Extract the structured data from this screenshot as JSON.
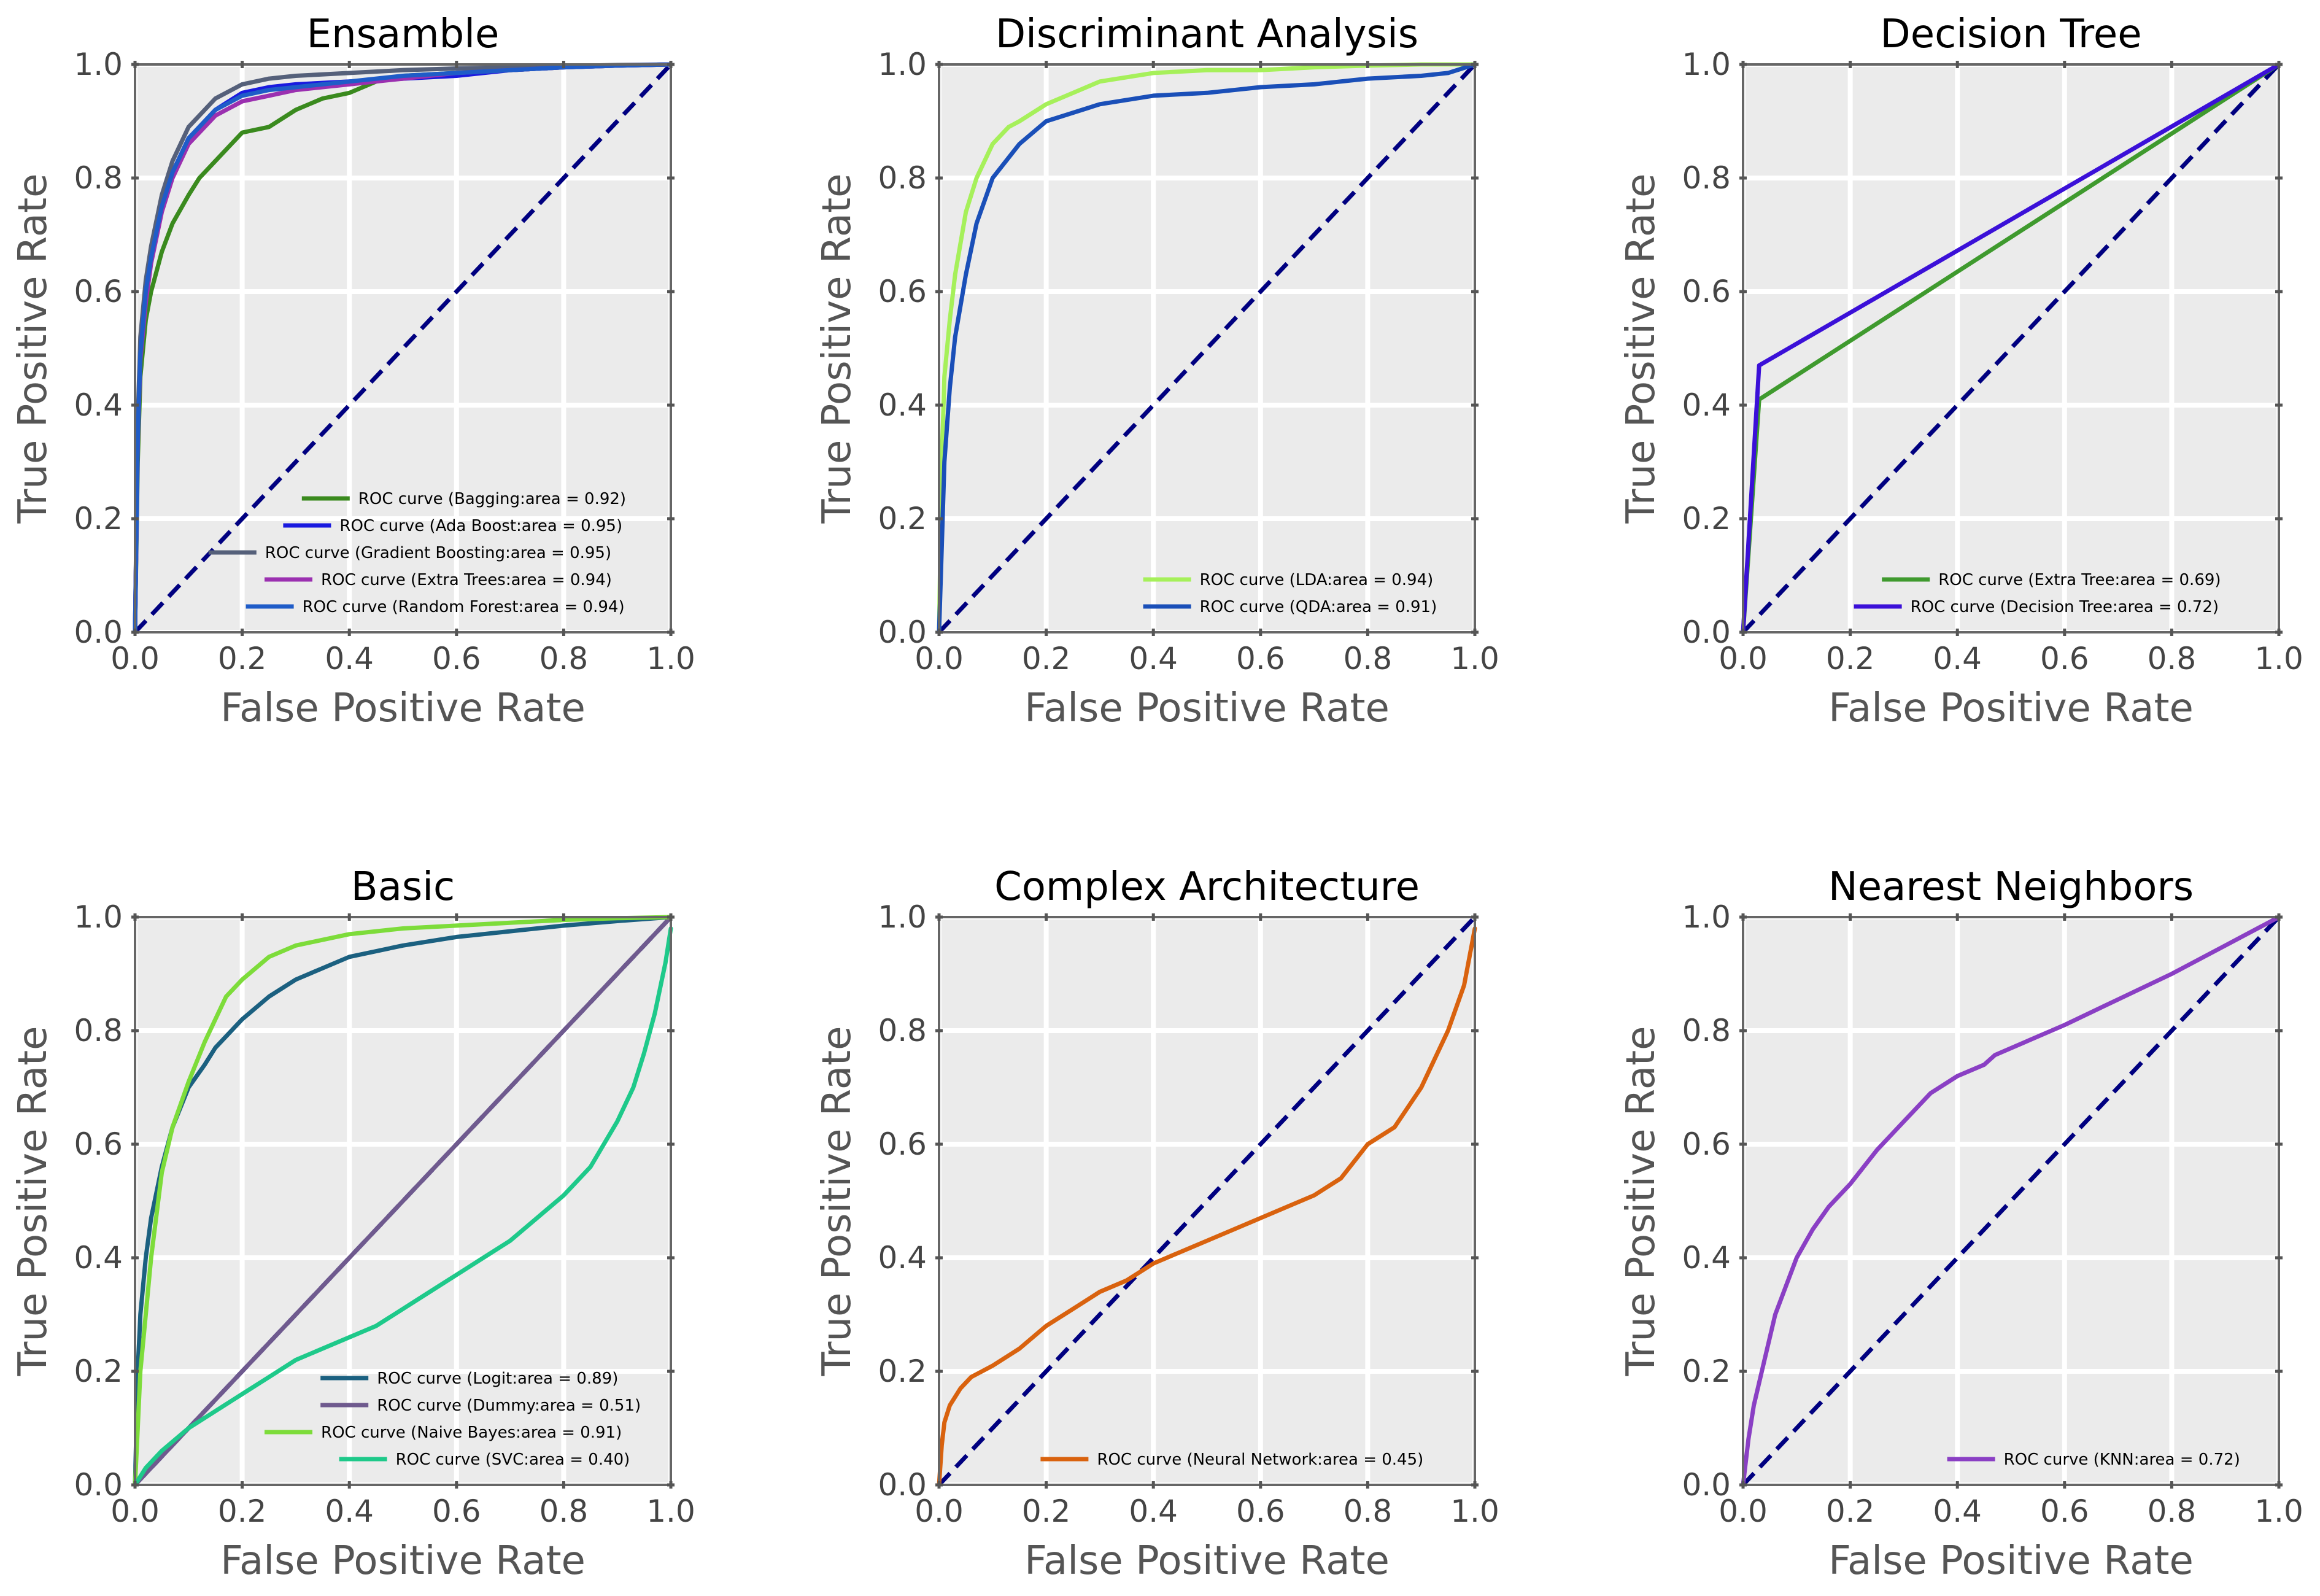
{
  "chart_data": [
    {
      "type": "line",
      "title": "Ensamble",
      "xlabel": "False Positive Rate",
      "ylabel": "True Positive Rate",
      "xlim": [
        0,
        1
      ],
      "ylim": [
        0,
        1
      ],
      "xticks": [
        "0.0",
        "0.2",
        "0.4",
        "0.6",
        "0.8",
        "1.0"
      ],
      "yticks": [
        "0.0",
        "0.2",
        "0.4",
        "0.6",
        "0.8",
        "1.0"
      ],
      "grid": true,
      "legend_position": "bottom-right",
      "series": [
        {
          "name": "ROC curve (Bagging:area = 0.92)",
          "color": "#3a8a1e",
          "x": [
            0,
            0.005,
            0.01,
            0.02,
            0.03,
            0.05,
            0.07,
            0.1,
            0.12,
            0.15,
            0.18,
            0.2,
            0.25,
            0.3,
            0.35,
            0.4,
            0.45,
            0.5,
            0.6,
            0.7,
            0.8,
            0.9,
            1.0
          ],
          "y": [
            0,
            0.3,
            0.45,
            0.55,
            0.6,
            0.67,
            0.72,
            0.77,
            0.8,
            0.83,
            0.86,
            0.88,
            0.89,
            0.92,
            0.94,
            0.95,
            0.97,
            0.98,
            0.985,
            0.99,
            0.995,
            0.998,
            1.0
          ]
        },
        {
          "name": "ROC curve (Ada Boost:area = 0.95)",
          "color": "#1a1adf",
          "x": [
            0,
            0.005,
            0.01,
            0.02,
            0.03,
            0.05,
            0.07,
            0.1,
            0.15,
            0.2,
            0.25,
            0.3,
            0.4,
            0.5,
            0.6,
            0.7,
            0.8,
            0.9,
            1.0
          ],
          "y": [
            0,
            0.35,
            0.5,
            0.6,
            0.66,
            0.75,
            0.81,
            0.87,
            0.92,
            0.95,
            0.96,
            0.965,
            0.97,
            0.975,
            0.98,
            0.99,
            0.995,
            0.998,
            1.0
          ]
        },
        {
          "name": "ROC curve (Gradient Boosting:area = 0.95)",
          "color": "#55607a",
          "x": [
            0,
            0.005,
            0.01,
            0.02,
            0.03,
            0.05,
            0.07,
            0.1,
            0.15,
            0.2,
            0.25,
            0.3,
            0.4,
            0.5,
            0.6,
            0.7,
            0.8,
            0.9,
            1.0
          ],
          "y": [
            0,
            0.37,
            0.52,
            0.62,
            0.68,
            0.77,
            0.83,
            0.89,
            0.94,
            0.965,
            0.975,
            0.98,
            0.985,
            0.99,
            0.993,
            0.995,
            0.997,
            0.999,
            1.0
          ]
        },
        {
          "name": "ROC curve (Extra Trees:area = 0.94)",
          "color": "#9b30b0",
          "x": [
            0,
            0.005,
            0.01,
            0.02,
            0.03,
            0.05,
            0.07,
            0.1,
            0.15,
            0.2,
            0.25,
            0.3,
            0.4,
            0.5,
            0.6,
            0.7,
            0.8,
            0.9,
            1.0
          ],
          "y": [
            0,
            0.33,
            0.48,
            0.58,
            0.65,
            0.74,
            0.8,
            0.86,
            0.91,
            0.935,
            0.945,
            0.955,
            0.965,
            0.975,
            0.985,
            0.99,
            0.995,
            0.998,
            1.0
          ]
        },
        {
          "name": "ROC curve (Random Forest:area = 0.94)",
          "color": "#1f5cc8",
          "x": [
            0,
            0.005,
            0.01,
            0.02,
            0.03,
            0.05,
            0.07,
            0.1,
            0.15,
            0.2,
            0.25,
            0.3,
            0.4,
            0.5,
            0.6,
            0.7,
            0.8,
            0.9,
            1.0
          ],
          "y": [
            0,
            0.34,
            0.49,
            0.6,
            0.66,
            0.75,
            0.81,
            0.87,
            0.92,
            0.945,
            0.955,
            0.96,
            0.97,
            0.98,
            0.985,
            0.99,
            0.995,
            0.998,
            1.0
          ]
        }
      ]
    },
    {
      "type": "line",
      "title": "Discriminant Analysis",
      "xlabel": "False Positive Rate",
      "ylabel": "True Positive Rate",
      "xlim": [
        0,
        1
      ],
      "ylim": [
        0,
        1
      ],
      "xticks": [
        "0.0",
        "0.2",
        "0.4",
        "0.6",
        "0.8",
        "1.0"
      ],
      "yticks": [
        "0.0",
        "0.2",
        "0.4",
        "0.6",
        "0.8",
        "1.0"
      ],
      "grid": true,
      "legend_position": "bottom-right",
      "series": [
        {
          "name": "ROC curve (LDA:area = 0.94)",
          "color": "#a6f05a",
          "x": [
            0,
            0.005,
            0.01,
            0.02,
            0.03,
            0.05,
            0.07,
            0.1,
            0.13,
            0.15,
            0.2,
            0.25,
            0.3,
            0.4,
            0.5,
            0.6,
            0.7,
            0.8,
            0.9,
            1.0
          ],
          "y": [
            0,
            0.3,
            0.45,
            0.55,
            0.63,
            0.74,
            0.8,
            0.86,
            0.89,
            0.9,
            0.93,
            0.95,
            0.97,
            0.985,
            0.99,
            0.99,
            0.995,
            0.998,
            1.0,
            1.0
          ]
        },
        {
          "name": "ROC curve (QDA:area = 0.91)",
          "color": "#1a4fb8",
          "x": [
            0,
            0.005,
            0.01,
            0.02,
            0.03,
            0.05,
            0.07,
            0.1,
            0.15,
            0.2,
            0.3,
            0.4,
            0.5,
            0.6,
            0.7,
            0.8,
            0.9,
            0.95,
            1.0
          ],
          "y": [
            0,
            0.15,
            0.3,
            0.43,
            0.52,
            0.63,
            0.72,
            0.8,
            0.86,
            0.9,
            0.93,
            0.945,
            0.95,
            0.96,
            0.965,
            0.975,
            0.98,
            0.985,
            1.0
          ]
        }
      ]
    },
    {
      "type": "line",
      "title": "Decision Tree",
      "xlabel": "False Positive Rate",
      "ylabel": "True Positive Rate",
      "xlim": [
        0,
        1
      ],
      "ylim": [
        0,
        1
      ],
      "xticks": [
        "0.0",
        "0.2",
        "0.4",
        "0.6",
        "0.8",
        "1.0"
      ],
      "yticks": [
        "0.0",
        "0.2",
        "0.4",
        "0.6",
        "0.8",
        "1.0"
      ],
      "grid": true,
      "legend_position": "bottom-right",
      "series": [
        {
          "name": "ROC curve (Extra Tree:area = 0.69)",
          "color": "#3f9a2e",
          "x": [
            0,
            0.03,
            1.0
          ],
          "y": [
            0,
            0.41,
            1.0
          ]
        },
        {
          "name": "ROC curve (Decision Tree:area = 0.72)",
          "color": "#3b10d8",
          "x": [
            0,
            0.03,
            1.0
          ],
          "y": [
            0,
            0.47,
            1.0
          ]
        }
      ]
    },
    {
      "type": "line",
      "title": "Basic",
      "xlabel": "False Positive Rate",
      "ylabel": "True Positive Rate",
      "xlim": [
        0,
        1
      ],
      "ylim": [
        0,
        1
      ],
      "xticks": [
        "0.0",
        "0.2",
        "0.4",
        "0.6",
        "0.8",
        "1.0"
      ],
      "yticks": [
        "0.0",
        "0.2",
        "0.4",
        "0.6",
        "0.8",
        "1.0"
      ],
      "grid": true,
      "legend_position": "bottom-right",
      "series": [
        {
          "name": "ROC curve (Logit:area = 0.89)",
          "color": "#1b6080",
          "x": [
            0,
            0.005,
            0.01,
            0.02,
            0.03,
            0.05,
            0.07,
            0.1,
            0.13,
            0.15,
            0.2,
            0.25,
            0.3,
            0.35,
            0.4,
            0.5,
            0.6,
            0.7,
            0.8,
            0.9,
            1.0
          ],
          "y": [
            0,
            0.2,
            0.3,
            0.4,
            0.47,
            0.56,
            0.63,
            0.7,
            0.74,
            0.77,
            0.82,
            0.86,
            0.89,
            0.91,
            0.93,
            0.95,
            0.965,
            0.975,
            0.985,
            0.993,
            1.0
          ]
        },
        {
          "name": "ROC curve (Dummy:area = 0.51)",
          "color": "#6f5a8e",
          "x": [
            0,
            1.0
          ],
          "y": [
            0,
            1.0
          ]
        },
        {
          "name": "ROC curve (Naive Bayes:area = 0.91)",
          "color": "#7ddc3a",
          "x": [
            0,
            0.005,
            0.01,
            0.02,
            0.03,
            0.05,
            0.07,
            0.1,
            0.13,
            0.15,
            0.17,
            0.2,
            0.25,
            0.3,
            0.4,
            0.5,
            0.6,
            0.7,
            0.8,
            0.9,
            1.0
          ],
          "y": [
            0,
            0.1,
            0.2,
            0.3,
            0.4,
            0.55,
            0.63,
            0.71,
            0.78,
            0.82,
            0.86,
            0.89,
            0.93,
            0.95,
            0.97,
            0.98,
            0.985,
            0.99,
            0.995,
            0.998,
            1.0
          ]
        },
        {
          "name": "ROC curve (SVC:area = 0.40)",
          "color": "#1ec98a",
          "x": [
            0,
            0.02,
            0.05,
            0.1,
            0.15,
            0.2,
            0.25,
            0.3,
            0.35,
            0.4,
            0.45,
            0.5,
            0.55,
            0.6,
            0.65,
            0.7,
            0.75,
            0.8,
            0.85,
            0.9,
            0.93,
            0.95,
            0.97,
            0.99,
            1.0
          ],
          "y": [
            0,
            0.03,
            0.06,
            0.1,
            0.13,
            0.16,
            0.19,
            0.22,
            0.24,
            0.26,
            0.28,
            0.31,
            0.34,
            0.37,
            0.4,
            0.43,
            0.47,
            0.51,
            0.56,
            0.64,
            0.7,
            0.76,
            0.83,
            0.92,
            0.98
          ]
        }
      ]
    },
    {
      "type": "line",
      "title": "Complex Architecture",
      "xlabel": "False Positive Rate",
      "ylabel": "True Positive Rate",
      "xlim": [
        0,
        1
      ],
      "ylim": [
        0,
        1
      ],
      "xticks": [
        "0.0",
        "0.2",
        "0.4",
        "0.6",
        "0.8",
        "1.0"
      ],
      "yticks": [
        "0.0",
        "0.2",
        "0.4",
        "0.6",
        "0.8",
        "1.0"
      ],
      "grid": true,
      "legend_position": "bottom-right",
      "series": [
        {
          "name": "ROC curve (Neural Network:area = 0.45)",
          "color": "#d9620e",
          "x": [
            0,
            0.005,
            0.01,
            0.02,
            0.04,
            0.06,
            0.1,
            0.15,
            0.2,
            0.25,
            0.3,
            0.35,
            0.4,
            0.45,
            0.5,
            0.55,
            0.6,
            0.65,
            0.7,
            0.75,
            0.8,
            0.85,
            0.9,
            0.95,
            0.98,
            1.0
          ],
          "y": [
            0,
            0.07,
            0.11,
            0.14,
            0.17,
            0.19,
            0.21,
            0.24,
            0.28,
            0.31,
            0.34,
            0.36,
            0.39,
            0.41,
            0.43,
            0.45,
            0.47,
            0.49,
            0.51,
            0.54,
            0.6,
            0.63,
            0.7,
            0.8,
            0.88,
            0.98
          ]
        }
      ]
    },
    {
      "type": "line",
      "title": "Nearest Neighbors",
      "xlabel": "False Positive Rate",
      "ylabel": "True Positive Rate",
      "xlim": [
        0,
        1
      ],
      "ylim": [
        0,
        1
      ],
      "xticks": [
        "0.0",
        "0.2",
        "0.4",
        "0.6",
        "0.8",
        "1.0"
      ],
      "yticks": [
        "0.0",
        "0.2",
        "0.4",
        "0.6",
        "0.8",
        "1.0"
      ],
      "grid": true,
      "legend_position": "bottom-right",
      "series": [
        {
          "name": "ROC curve (KNN:area = 0.72)",
          "color": "#8a3fc4",
          "x": [
            0,
            0.01,
            0.02,
            0.04,
            0.06,
            0.08,
            0.1,
            0.13,
            0.16,
            0.2,
            0.25,
            0.3,
            0.35,
            0.4,
            0.45,
            0.47,
            0.6,
            0.7,
            0.8,
            0.9,
            1.0
          ],
          "y": [
            0,
            0.08,
            0.14,
            0.22,
            0.3,
            0.35,
            0.4,
            0.45,
            0.49,
            0.53,
            0.59,
            0.64,
            0.69,
            0.72,
            0.74,
            0.757,
            0.81,
            0.855,
            0.9,
            0.95,
            1.0
          ]
        }
      ]
    }
  ]
}
